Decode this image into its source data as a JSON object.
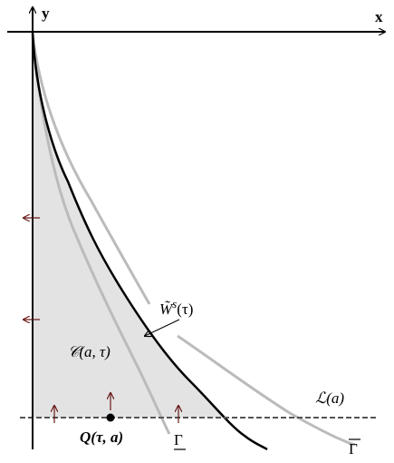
{
  "axes": {
    "x": "x",
    "y": "y"
  },
  "labels": {
    "w_tilde": {
      "base": "W̃",
      "sup": "s",
      "arg": "(τ)"
    },
    "c_region": "𝒞(a, τ)",
    "l_line": "ℒ(a)",
    "q_point": "Q(τ, a)",
    "gamma_lower": "Γ",
    "gamma_upper": "Γ"
  }
}
